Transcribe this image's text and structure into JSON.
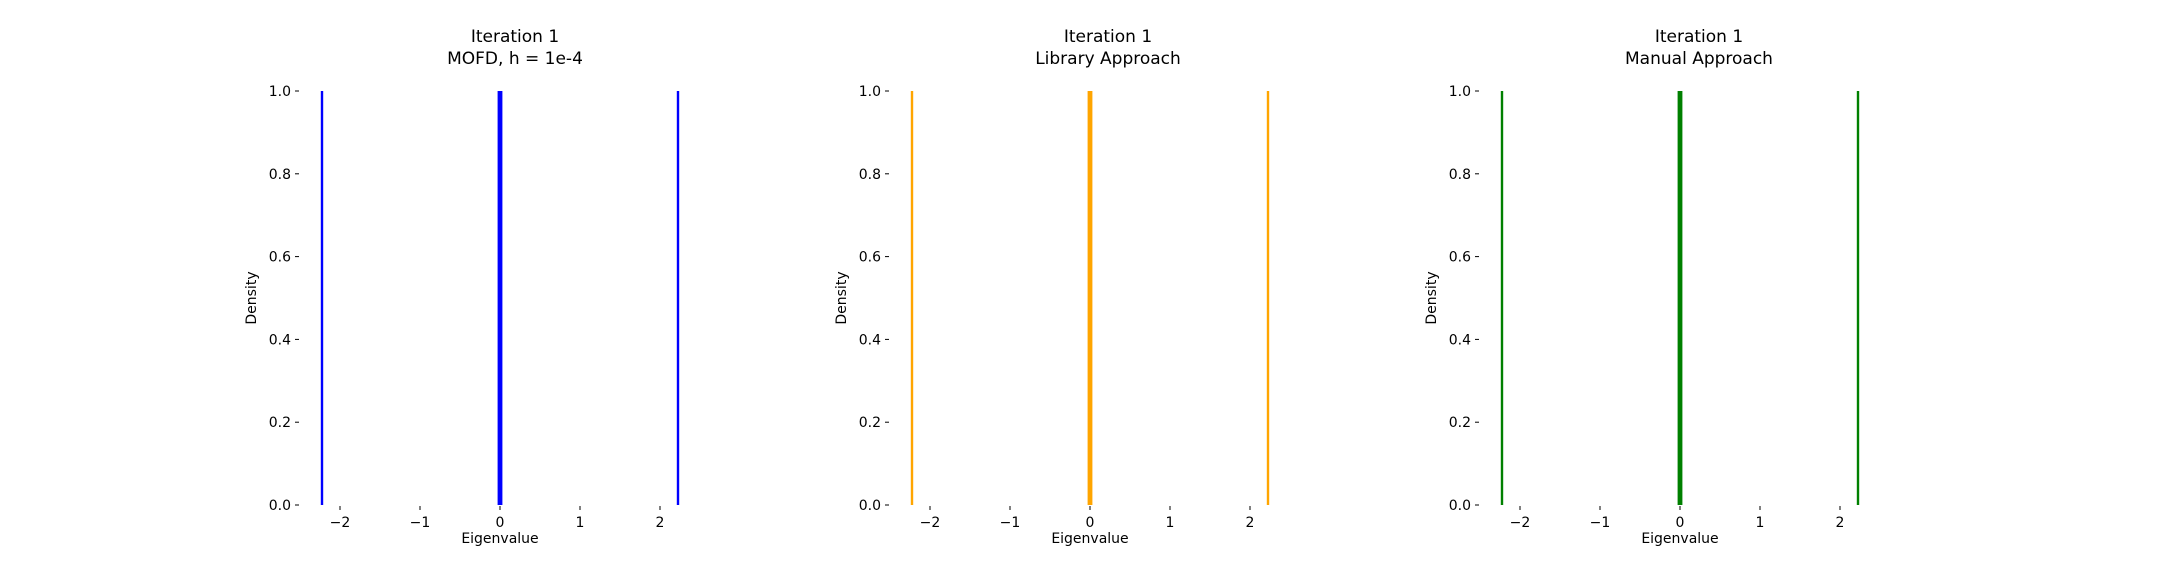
{
  "chart_data": [
    {
      "type": "bar",
      "title_lines": [
        "Iteration 1",
        "MOFD, h = 1e-4"
      ],
      "xlabel": "Eigenvalue",
      "ylabel": "Density",
      "color": "#0000ff",
      "xticks": [
        -2,
        -1,
        0,
        1,
        2
      ],
      "xtick_labels": [
        "−2",
        "−1",
        "0",
        "1",
        "2"
      ],
      "yticks": [
        0.0,
        0.2,
        0.4,
        0.6,
        0.8,
        1.0
      ],
      "ytick_labels": [
        "0.0",
        "0.2",
        "0.4",
        "0.6",
        "0.8",
        "1.0"
      ],
      "xlim": [
        -2.5,
        2.5
      ],
      "ylim": [
        0,
        1
      ],
      "grid": false,
      "bins": [
        {
          "x0": -2.24,
          "x1": -2.21,
          "density": 1.0
        },
        {
          "x0": -0.03,
          "x1": 0.03,
          "density": 1.0
        },
        {
          "x0": 2.21,
          "x1": 2.24,
          "density": 1.0
        }
      ]
    },
    {
      "type": "bar",
      "title_lines": [
        "Iteration 1",
        "Library Approach"
      ],
      "xlabel": "Eigenvalue",
      "ylabel": "Density",
      "color": "#ffa500",
      "xticks": [
        -2,
        -1,
        0,
        1,
        2
      ],
      "xtick_labels": [
        "−2",
        "−1",
        "0",
        "1",
        "2"
      ],
      "yticks": [
        0.0,
        0.2,
        0.4,
        0.6,
        0.8,
        1.0
      ],
      "ytick_labels": [
        "0.0",
        "0.2",
        "0.4",
        "0.6",
        "0.8",
        "1.0"
      ],
      "xlim": [
        -2.5,
        2.5
      ],
      "ylim": [
        0,
        1
      ],
      "grid": false,
      "bins": [
        {
          "x0": -2.24,
          "x1": -2.21,
          "density": 1.0
        },
        {
          "x0": -0.03,
          "x1": 0.03,
          "density": 1.0
        },
        {
          "x0": 2.21,
          "x1": 2.24,
          "density": 1.0
        }
      ]
    },
    {
      "type": "bar",
      "title_lines": [
        "Iteration 1",
        "Manual Approach"
      ],
      "xlabel": "Eigenvalue",
      "ylabel": "Density",
      "color": "#008000",
      "xticks": [
        -2,
        -1,
        0,
        1,
        2
      ],
      "xtick_labels": [
        "−2",
        "−1",
        "0",
        "1",
        "2"
      ],
      "yticks": [
        0.0,
        0.2,
        0.4,
        0.6,
        0.8,
        1.0
      ],
      "ytick_labels": [
        "0.0",
        "0.2",
        "0.4",
        "0.6",
        "0.8",
        "1.0"
      ],
      "xlim": [
        -2.5,
        2.5
      ],
      "ylim": [
        0,
        1
      ],
      "grid": false,
      "bins": [
        {
          "x0": -2.24,
          "x1": -2.21,
          "density": 1.0
        },
        {
          "x0": -0.03,
          "x1": 0.03,
          "density": 1.0
        },
        {
          "x0": 2.21,
          "x1": 2.24,
          "density": 1.0
        }
      ]
    }
  ]
}
